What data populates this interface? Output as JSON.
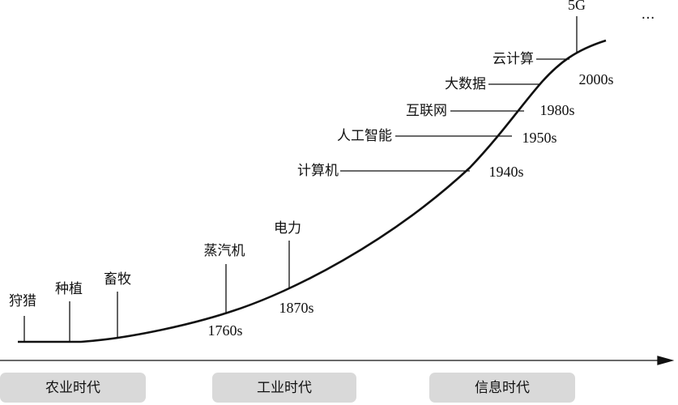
{
  "milestones": [
    {
      "label": "狩猎"
    },
    {
      "label": "种植"
    },
    {
      "label": "畜牧"
    },
    {
      "label": "蒸汽机",
      "year": "1760s"
    },
    {
      "label": "电力",
      "year": "1870s"
    },
    {
      "label": "计算机",
      "year": "1940s"
    },
    {
      "label": "人工智能",
      "year": "1950s"
    },
    {
      "label": "互联网",
      "year": "1980s"
    },
    {
      "label": "大数据"
    },
    {
      "label": "云计算",
      "year": "2000s"
    },
    {
      "label": "5G"
    }
  ],
  "ellipsis": "…",
  "eras": [
    "农业时代",
    "工业时代",
    "信息时代"
  ]
}
